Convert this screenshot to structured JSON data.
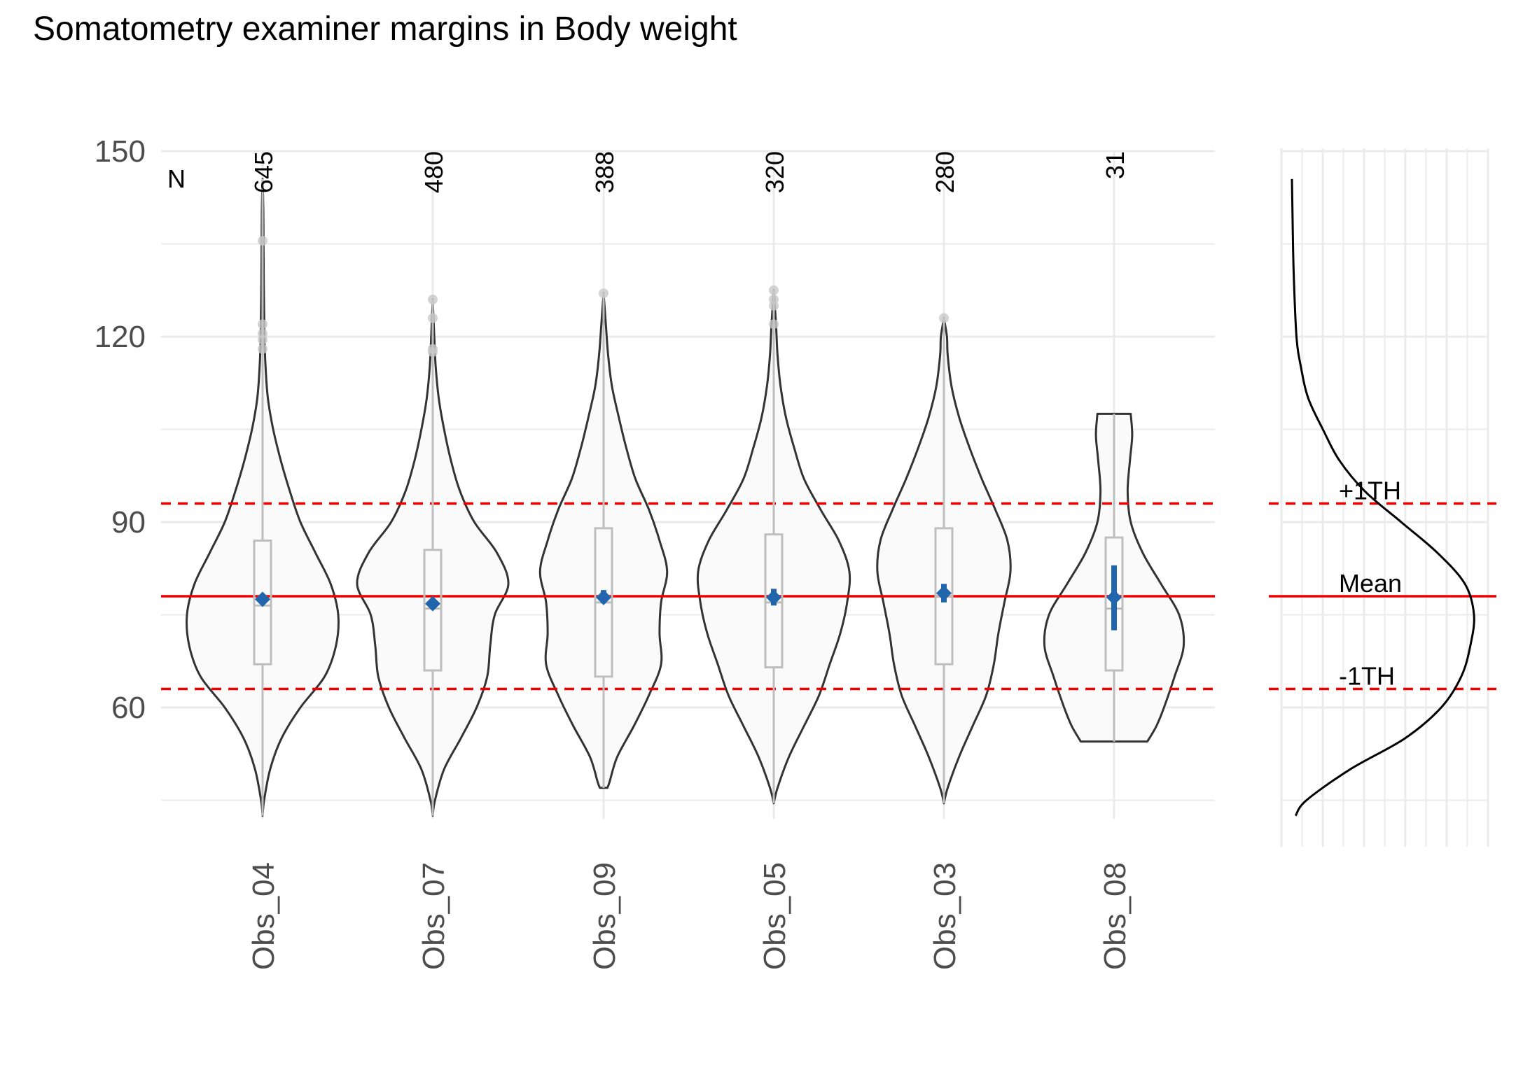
{
  "chart_data": {
    "type": "violin",
    "title": "Somatometry examiner margins in Body weight",
    "xlabel": "",
    "ylabel": "",
    "ylim": [
      40,
      150
    ],
    "y_ticks": [
      60,
      90,
      120,
      150
    ],
    "n_header": "N",
    "groups": [
      {
        "name": "Obs_04",
        "n": "645",
        "min": 42.5,
        "q1": 67,
        "median": 76.5,
        "q3": 87,
        "max": 145.5,
        "mean": 77.5,
        "ci": [
          77,
          78.2
        ],
        "outliers": [
          135.5,
          122,
          120.5,
          119.5,
          118
        ],
        "violin": [
          [
            42.5,
            0
          ],
          [
            45,
            0.02
          ],
          [
            50,
            0.1
          ],
          [
            55,
            0.25
          ],
          [
            60,
            0.5
          ],
          [
            65,
            0.82
          ],
          [
            70,
            0.97
          ],
          [
            75,
            1.0
          ],
          [
            80,
            0.9
          ],
          [
            85,
            0.7
          ],
          [
            90,
            0.5
          ],
          [
            95,
            0.36
          ],
          [
            100,
            0.24
          ],
          [
            105,
            0.14
          ],
          [
            110,
            0.07
          ],
          [
            115,
            0.04
          ],
          [
            120,
            0.025
          ],
          [
            130,
            0.015
          ],
          [
            140,
            0.01
          ],
          [
            145.5,
            0
          ]
        ]
      },
      {
        "name": "Obs_07",
        "n": "480",
        "min": 42.5,
        "q1": 66,
        "median": 76,
        "q3": 85.5,
        "max": 126,
        "mean": 76.8,
        "ci": [
          76.2,
          77.5
        ],
        "outliers": [
          126,
          123,
          118,
          117.5
        ],
        "violin": [
          [
            42.5,
            0
          ],
          [
            45,
            0.03
          ],
          [
            50,
            0.15
          ],
          [
            55,
            0.37
          ],
          [
            60,
            0.58
          ],
          [
            65,
            0.72
          ],
          [
            70,
            0.76
          ],
          [
            75,
            0.82
          ],
          [
            80,
            1.0
          ],
          [
            85,
            0.85
          ],
          [
            90,
            0.55
          ],
          [
            95,
            0.36
          ],
          [
            100,
            0.24
          ],
          [
            105,
            0.15
          ],
          [
            110,
            0.08
          ],
          [
            115,
            0.04
          ],
          [
            120,
            0.02
          ],
          [
            126,
            0
          ]
        ]
      },
      {
        "name": "Obs_09",
        "n": "388",
        "min": 47,
        "q1": 65,
        "median": 77,
        "q3": 89,
        "max": 127,
        "mean": 77.8,
        "ci": [
          76.9,
          79
        ],
        "outliers": [
          127
        ],
        "violin": [
          [
            47,
            0.05
          ],
          [
            48,
            0.08
          ],
          [
            52,
            0.18
          ],
          [
            57,
            0.4
          ],
          [
            62,
            0.6
          ],
          [
            67,
            0.76
          ],
          [
            72,
            0.74
          ],
          [
            77,
            0.76
          ],
          [
            82,
            0.84
          ],
          [
            87,
            0.74
          ],
          [
            92,
            0.6
          ],
          [
            97,
            0.42
          ],
          [
            102,
            0.3
          ],
          [
            107,
            0.2
          ],
          [
            112,
            0.11
          ],
          [
            117,
            0.06
          ],
          [
            122,
            0.03
          ],
          [
            127,
            0
          ]
        ]
      },
      {
        "name": "Obs_05",
        "n": "320",
        "min": 44.5,
        "q1": 66.5,
        "median": 77,
        "q3": 88,
        "max": 127.5,
        "mean": 77.8,
        "ci": [
          76.5,
          79.2
        ],
        "outliers": [
          127.5,
          126,
          125,
          122
        ],
        "violin": [
          [
            44.5,
            0
          ],
          [
            47,
            0.05
          ],
          [
            52,
            0.2
          ],
          [
            57,
            0.4
          ],
          [
            62,
            0.6
          ],
          [
            67,
            0.74
          ],
          [
            72,
            0.88
          ],
          [
            77,
            0.97
          ],
          [
            82,
            1.0
          ],
          [
            87,
            0.86
          ],
          [
            92,
            0.62
          ],
          [
            97,
            0.4
          ],
          [
            102,
            0.27
          ],
          [
            107,
            0.16
          ],
          [
            112,
            0.09
          ],
          [
            117,
            0.05
          ],
          [
            122,
            0.03
          ],
          [
            127.5,
            0
          ]
        ]
      },
      {
        "name": "Obs_03",
        "n": "280",
        "min": 44.5,
        "q1": 67,
        "median": 78,
        "q3": 89,
        "max": 123,
        "mean": 78.5,
        "ci": [
          77,
          80
        ],
        "outliers": [
          123
        ],
        "violin": [
          [
            44.5,
            0
          ],
          [
            47,
            0.05
          ],
          [
            52,
            0.2
          ],
          [
            57,
            0.38
          ],
          [
            62,
            0.56
          ],
          [
            67,
            0.66
          ],
          [
            72,
            0.72
          ],
          [
            77,
            0.8
          ],
          [
            82,
            0.88
          ],
          [
            87,
            0.84
          ],
          [
            92,
            0.68
          ],
          [
            97,
            0.5
          ],
          [
            102,
            0.34
          ],
          [
            107,
            0.2
          ],
          [
            112,
            0.1
          ],
          [
            117,
            0.05
          ],
          [
            120,
            0.04
          ],
          [
            123,
            0
          ]
        ]
      },
      {
        "name": "Obs_08",
        "n": "31",
        "min": 54.5,
        "q1": 66,
        "median": 76,
        "q3": 87.5,
        "max": 107.5,
        "mean": 77.8,
        "ci": [
          72.5,
          83
        ],
        "outliers": [],
        "violin": [
          [
            54.5,
            0.44
          ],
          [
            57,
            0.56
          ],
          [
            60,
            0.66
          ],
          [
            65,
            0.8
          ],
          [
            70,
            0.92
          ],
          [
            75,
            0.86
          ],
          [
            80,
            0.62
          ],
          [
            85,
            0.38
          ],
          [
            90,
            0.22
          ],
          [
            95,
            0.18
          ],
          [
            100,
            0.21
          ],
          [
            104,
            0.24
          ],
          [
            107.5,
            0.22
          ]
        ]
      }
    ],
    "reference_lines": [
      {
        "label": "+1TH",
        "y": 93,
        "style": "dashed"
      },
      {
        "label": "Mean",
        "y": 78,
        "style": "solid"
      },
      {
        "label": "-1TH",
        "y": 63,
        "style": "dashed"
      }
    ],
    "marginal_density": [
      [
        42.5,
        0.02
      ],
      [
        45,
        0.08
      ],
      [
        50,
        0.32
      ],
      [
        55,
        0.62
      ],
      [
        60,
        0.82
      ],
      [
        65,
        0.93
      ],
      [
        70,
        0.98
      ],
      [
        75,
        1.0
      ],
      [
        80,
        0.95
      ],
      [
        85,
        0.8
      ],
      [
        90,
        0.6
      ],
      [
        95,
        0.4
      ],
      [
        100,
        0.26
      ],
      [
        105,
        0.17
      ],
      [
        110,
        0.09
      ],
      [
        115,
        0.05
      ],
      [
        120,
        0.025
      ],
      [
        130,
        0.01
      ],
      [
        140,
        0.003
      ],
      [
        145.5,
        0
      ]
    ],
    "grid": true,
    "colors": {
      "reference": "#ee0000",
      "violin_stroke": "#333333",
      "violin_fill": "#fafafa",
      "box": "#bebebe",
      "mean": "#2166ac",
      "outlier": "#c8c8c8",
      "grid": "#ebebeb"
    }
  }
}
